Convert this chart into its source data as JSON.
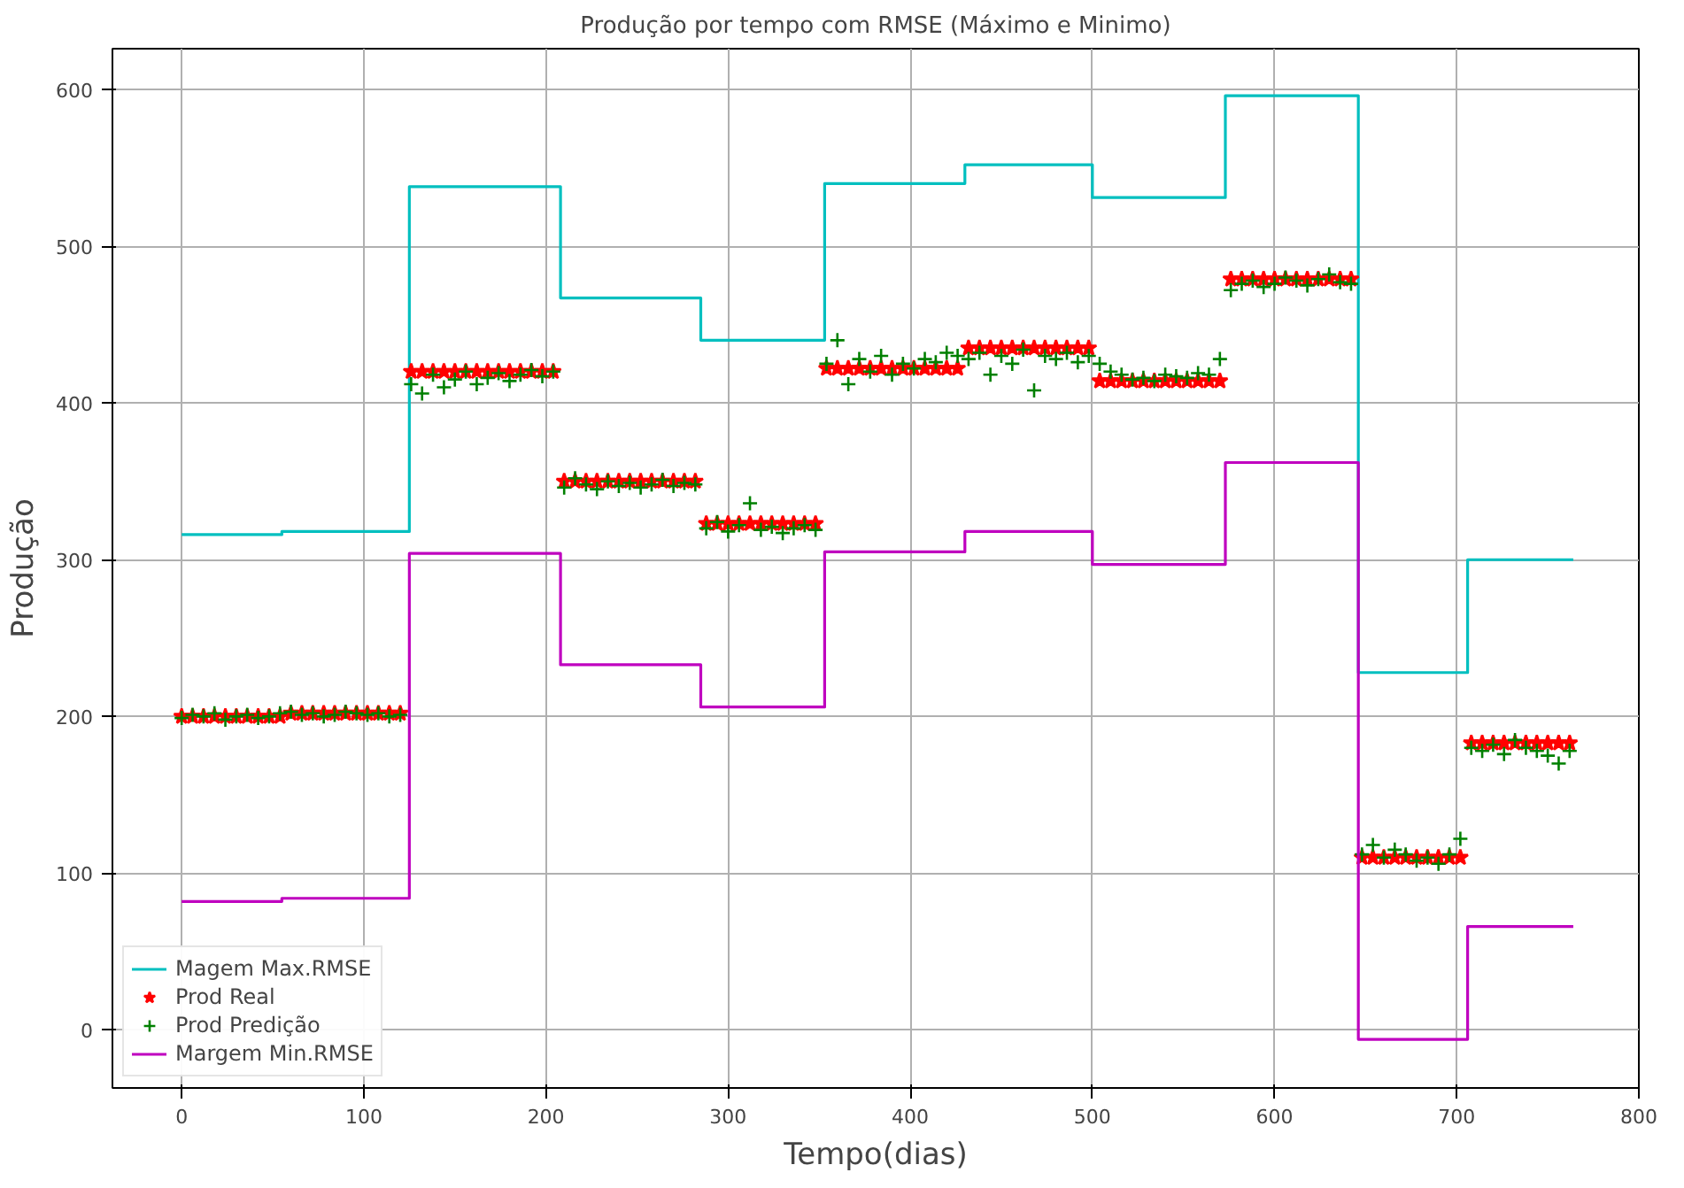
{
  "chart_data": {
    "type": "scatter",
    "title": "Produção por tempo com RMSE (Máximo e Minimo)",
    "xlabel": "Tempo(dias)",
    "ylabel": "Produção",
    "x": [
      0,
      6,
      12,
      18,
      24,
      30,
      36,
      42,
      48,
      54,
      60,
      66,
      72,
      78,
      84,
      90,
      96,
      102,
      108,
      114,
      120,
      126,
      132,
      138,
      144,
      150,
      156,
      162,
      168,
      174,
      180,
      186,
      192,
      198,
      204,
      210,
      216,
      222,
      228,
      234,
      240,
      246,
      252,
      258,
      264,
      270,
      276,
      282,
      288,
      294,
      300,
      306,
      312,
      318,
      324,
      330,
      336,
      342,
      348,
      354,
      360,
      366,
      372,
      378,
      384,
      390,
      396,
      402,
      408,
      414,
      420,
      426,
      432,
      438,
      444,
      450,
      456,
      462,
      468,
      474,
      480,
      486,
      492,
      498,
      504,
      510,
      516,
      522,
      528,
      534,
      540,
      546,
      552,
      558,
      564,
      570,
      576,
      582,
      588,
      594,
      600,
      606,
      612,
      618,
      624,
      630,
      636,
      642,
      648,
      654,
      660,
      666,
      672,
      678,
      684,
      690,
      696,
      702,
      708,
      714,
      720,
      726,
      732,
      738,
      744,
      750,
      756,
      762
    ],
    "series": [
      {
        "name": "Magem Max.RMSE",
        "type": "step",
        "color": "#00bfbf",
        "x": [
          0,
          55,
          125,
          208,
          285,
          353,
          430,
          500,
          573,
          646,
          706,
          764
        ],
        "values": [
          316,
          318,
          538,
          467,
          440,
          540,
          552,
          531,
          596,
          228,
          300,
          300
        ]
      },
      {
        "name": "Prod Real",
        "color": "#ff0000",
        "marker": "star",
        "values": [
          200,
          200,
          200,
          200,
          200,
          200,
          200,
          200,
          200,
          200,
          202,
          202,
          202,
          202,
          202,
          202,
          202,
          202,
          202,
          202,
          202,
          420,
          420,
          420,
          420,
          420,
          420,
          420,
          420,
          420,
          420,
          420,
          420,
          420,
          420,
          350,
          350,
          350,
          350,
          350,
          350,
          350,
          350,
          350,
          350,
          350,
          350,
          350,
          323,
          323,
          323,
          323,
          323,
          323,
          323,
          323,
          323,
          323,
          323,
          422,
          422,
          422,
          422,
          422,
          422,
          422,
          422,
          422,
          422,
          422,
          422,
          422,
          435,
          435,
          435,
          435,
          435,
          435,
          435,
          435,
          435,
          435,
          435,
          435,
          414,
          414,
          414,
          414,
          414,
          414,
          414,
          414,
          414,
          414,
          414,
          414,
          479,
          479,
          479,
          479,
          479,
          479,
          479,
          479,
          479,
          479,
          479,
          479,
          110,
          110,
          110,
          110,
          110,
          110,
          110,
          110,
          110,
          110,
          183,
          183,
          183,
          183,
          183,
          183,
          183,
          183,
          183,
          183
        ]
      },
      {
        "name": "Prod Predição",
        "color": "#008000",
        "marker": "cross",
        "values": [
          199,
          201,
          200,
          202,
          198,
          200,
          201,
          199,
          200,
          202,
          203,
          201,
          202,
          200,
          201,
          203,
          202,
          201,
          202,
          200,
          201,
          412,
          406,
          418,
          410,
          415,
          420,
          412,
          416,
          419,
          414,
          418,
          421,
          417,
          420,
          346,
          352,
          348,
          345,
          350,
          347,
          349,
          346,
          348,
          351,
          347,
          349,
          348,
          320,
          324,
          318,
          322,
          336,
          319,
          321,
          317,
          320,
          322,
          319,
          425,
          440,
          412,
          428,
          420,
          430,
          418,
          425,
          422,
          428,
          426,
          432,
          430,
          428,
          432,
          418,
          430,
          425,
          434,
          408,
          430,
          428,
          432,
          426,
          430,
          425,
          420,
          418,
          415,
          416,
          414,
          418,
          417,
          416,
          419,
          418,
          428,
          472,
          476,
          478,
          474,
          476,
          480,
          478,
          475,
          479,
          482,
          477,
          476,
          112,
          118,
          110,
          115,
          112,
          108,
          110,
          106,
          112,
          122,
          180,
          178,
          182,
          176,
          185,
          180,
          178,
          175,
          170,
          178
        ]
      },
      {
        "name": "Margem Min.RMSE",
        "type": "step",
        "color": "#bf00bf",
        "x": [
          0,
          55,
          125,
          208,
          285,
          353,
          430,
          500,
          573,
          646,
          706,
          764
        ],
        "values": [
          82,
          84,
          304,
          233,
          206,
          305,
          318,
          297,
          362,
          -6,
          66,
          66
        ]
      }
    ],
    "xlim": [
      -38,
      800
    ],
    "ylim": [
      -37,
      626
    ],
    "xticks": [
      0,
      100,
      200,
      300,
      400,
      500,
      600,
      700,
      800
    ],
    "yticks": [
      0,
      100,
      200,
      300,
      400,
      500,
      600
    ],
    "grid": true,
    "legend": "bottom left"
  }
}
